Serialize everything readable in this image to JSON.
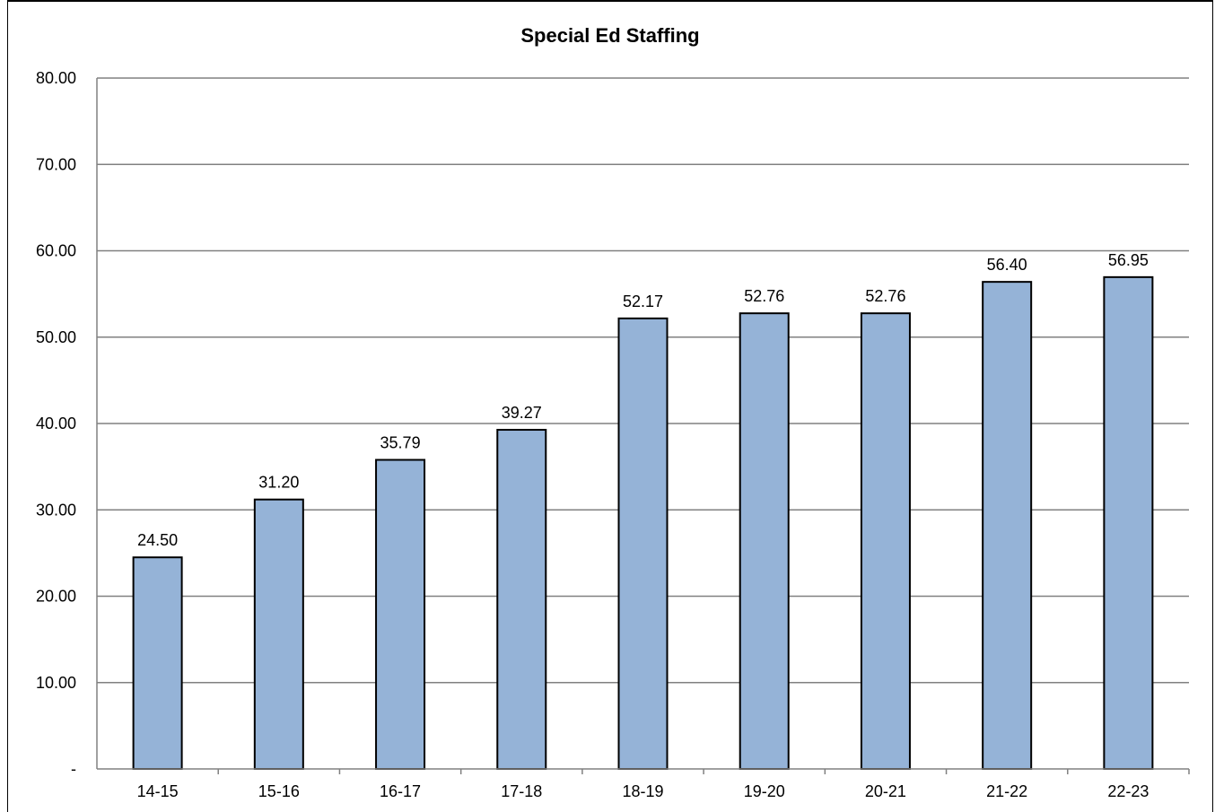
{
  "chart_data": {
    "type": "bar",
    "title": "Special Ed Staffing",
    "xlabel": "",
    "ylabel": "",
    "categories": [
      "14-15",
      "15-16",
      "16-17",
      "17-18",
      "18-19",
      "19-20",
      "20-21",
      "21-22",
      "22-23"
    ],
    "values": [
      24.5,
      31.2,
      35.79,
      39.27,
      52.17,
      52.76,
      52.76,
      56.4,
      56.95
    ],
    "data_labels": [
      "24.50",
      "31.20",
      "35.79",
      "39.27",
      "52.17",
      "52.76",
      "52.76",
      "56.40",
      "56.95"
    ],
    "ylim": [
      0,
      80
    ],
    "yticks": [
      0,
      10,
      20,
      30,
      40,
      50,
      60,
      70,
      80
    ],
    "ytick_labels": [
      "-",
      "10.00",
      "20.00",
      "30.00",
      "40.00",
      "50.00",
      "60.00",
      "70.00",
      "80.00"
    ],
    "grid": true,
    "legend": "none",
    "colors": {
      "bar_fill": "#95b3d7",
      "bar_stroke": "#000000",
      "grid": "#808080"
    }
  }
}
